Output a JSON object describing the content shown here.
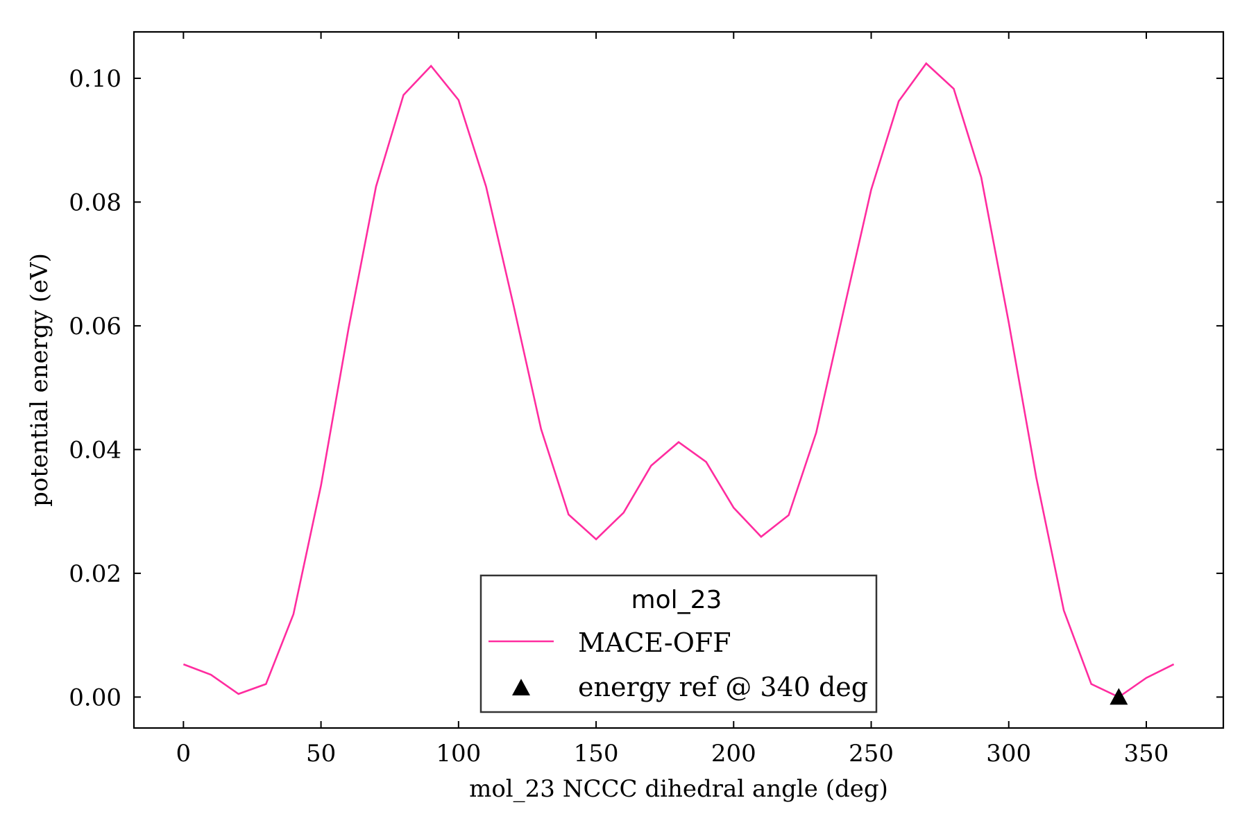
{
  "chart_data": {
    "type": "line",
    "xlabel": "mol_23 NCCC dihedral angle (deg)",
    "ylabel": "potential energy (eV)",
    "xlim": [
      -18,
      378
    ],
    "ylim": [
      -0.005,
      0.1075
    ],
    "xticks": [
      0,
      50,
      100,
      150,
      200,
      250,
      300,
      350
    ],
    "yticks": [
      0.0,
      0.02,
      0.04,
      0.06,
      0.08,
      0.1
    ],
    "xtick_labels": [
      "0",
      "50",
      "100",
      "150",
      "200",
      "250",
      "300",
      "350"
    ],
    "ytick_labels": [
      "0.00",
      "0.02",
      "0.04",
      "0.06",
      "0.08",
      "0.10"
    ],
    "grid": false,
    "legend": {
      "title": "mol_23",
      "placement": "lower-center"
    },
    "series": [
      {
        "name": "MACE-OFF",
        "kind": "line",
        "color": "#ff2c9f",
        "x": [
          0,
          10,
          20,
          30,
          40,
          50,
          60,
          70,
          80,
          90,
          100,
          110,
          120,
          130,
          140,
          150,
          160,
          170,
          180,
          190,
          200,
          210,
          220,
          230,
          240,
          250,
          260,
          270,
          280,
          290,
          300,
          310,
          320,
          330,
          340,
          350,
          360
        ],
        "y": [
          0.0053,
          0.0036,
          0.0005,
          0.0021,
          0.0134,
          0.0342,
          0.0595,
          0.0825,
          0.0973,
          0.102,
          0.0965,
          0.0825,
          0.0633,
          0.0433,
          0.0295,
          0.0255,
          0.0298,
          0.0374,
          0.0412,
          0.038,
          0.0306,
          0.0259,
          0.0294,
          0.0427,
          0.0625,
          0.082,
          0.0963,
          0.1024,
          0.0983,
          0.084,
          0.0605,
          0.0355,
          0.014,
          0.0021,
          0.0,
          0.0031,
          0.0053
        ]
      },
      {
        "name": "energy ref @ 340 deg",
        "kind": "marker",
        "marker": "triangle-up",
        "color": "#000000",
        "x": [
          340
        ],
        "y": [
          0.0
        ]
      }
    ]
  }
}
